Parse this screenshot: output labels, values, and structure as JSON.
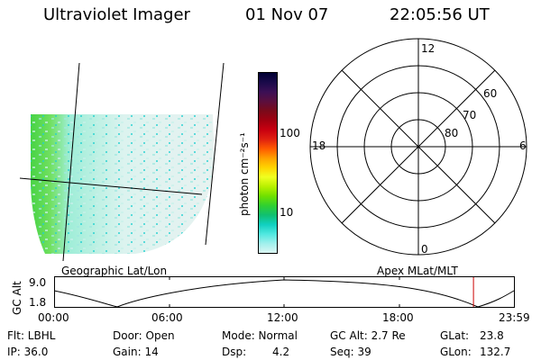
{
  "header": {
    "title": "Ultraviolet Imager",
    "date": "01 Nov 07",
    "time": "22:05:56 UT"
  },
  "colorbar": {
    "unit_label": "photon cm⁻²s⁻¹",
    "ticks": [
      "100",
      "10"
    ],
    "colors": [
      "#000033",
      "#1a0a4a",
      "#3b0f55",
      "#5a0f3e",
      "#7a0a1a",
      "#a00010",
      "#c80010",
      "#e02010",
      "#ff5a00",
      "#ffa000",
      "#ffd400",
      "#f0ff20",
      "#b8f000",
      "#70e000",
      "#30d030",
      "#10c070",
      "#10d0c0",
      "#50e8e0",
      "#a0f0ec",
      "#dcf6f3"
    ]
  },
  "geo_panel": {
    "label": "Geographic Lat/Lon"
  },
  "polar_panel": {
    "label": "Apex MLat/MLT",
    "mlt_labels": {
      "top": "12",
      "left": "18",
      "right": "6",
      "bottom": "0"
    },
    "lat_labels": [
      "60",
      "70",
      "80"
    ]
  },
  "altitude_plot": {
    "ylabel": "GC Alt",
    "y_ticks": [
      "9.0",
      "1.8"
    ],
    "x_ticks": [
      "00:00",
      "06:00",
      "12:00",
      "18:00",
      "23:59"
    ],
    "current_time_fraction": 0.911,
    "marker_color": "#cc0000"
  },
  "info": {
    "flt": "Flt: LBHL",
    "ip": "IP: 36.0",
    "door": "Door: Open",
    "gain": "Gain: 14",
    "mode": "Mode: Normal",
    "dsp_label": "Dsp:",
    "dsp_value": "4.2",
    "gcalt": "GC Alt: 2.7 Re",
    "seq": "Seq: 39",
    "glat_label": "GLat:",
    "glat_value": "23.8",
    "glon_label": "GLon:",
    "glon_value": "132.7"
  }
}
